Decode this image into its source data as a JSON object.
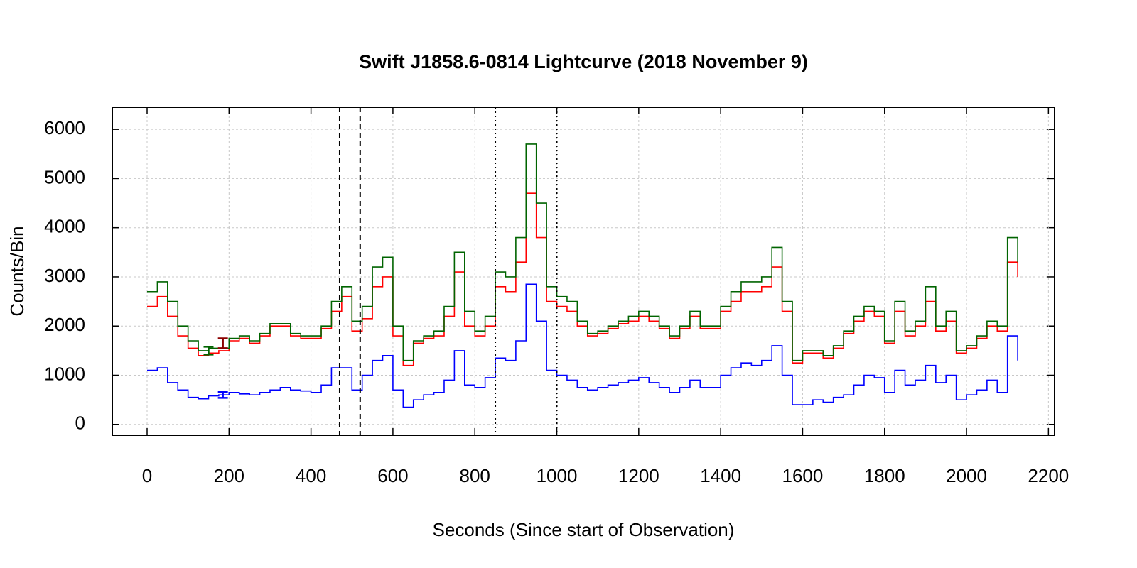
{
  "chart_data": {
    "type": "line",
    "title": "Swift J1858.6-0814 Lightcurve (2018 November 9)",
    "xlabel": "Seconds (Since start of Observation)",
    "ylabel": "Counts/Bin",
    "x": [
      0,
      25,
      50,
      75,
      100,
      125,
      150,
      175,
      200,
      225,
      250,
      275,
      300,
      325,
      350,
      375,
      400,
      425,
      450,
      475,
      500,
      525,
      550,
      575,
      600,
      625,
      650,
      675,
      700,
      725,
      750,
      775,
      800,
      825,
      850,
      875,
      900,
      925,
      950,
      975,
      1000,
      1025,
      1050,
      1075,
      1100,
      1125,
      1150,
      1175,
      1200,
      1225,
      1250,
      1275,
      1300,
      1325,
      1350,
      1375,
      1400,
      1425,
      1450,
      1475,
      1500,
      1525,
      1550,
      1575,
      1600,
      1625,
      1650,
      1675,
      1700,
      1725,
      1750,
      1775,
      1800,
      1825,
      1850,
      1875,
      1900,
      1925,
      1950,
      1975,
      2000,
      2025,
      2050,
      2075,
      2100,
      2125
    ],
    "series": [
      {
        "color": "#0000ff",
        "values": [
          1100,
          1150,
          850,
          700,
          550,
          520,
          580,
          600,
          650,
          620,
          600,
          650,
          700,
          750,
          700,
          680,
          650,
          800,
          1150,
          1150,
          700,
          1000,
          1300,
          1400,
          700,
          350,
          500,
          600,
          650,
          900,
          1500,
          800,
          750,
          950,
          1350,
          1300,
          1700,
          2850,
          2100,
          1100,
          1000,
          900,
          750,
          700,
          750,
          800,
          850,
          900,
          950,
          850,
          750,
          650,
          750,
          900,
          750,
          750,
          1000,
          1150,
          1250,
          1200,
          1300,
          1600,
          1000,
          400,
          400,
          500,
          450,
          550,
          600,
          800,
          1000,
          950,
          650,
          1100,
          800,
          900,
          1200,
          850,
          1000,
          500,
          600,
          700,
          900,
          650,
          1800,
          1300
        ]
      },
      {
        "color": "#ff0000",
        "values": [
          2400,
          2600,
          2200,
          1800,
          1550,
          1400,
          1450,
          1500,
          1700,
          1750,
          1650,
          1800,
          2000,
          2000,
          1800,
          1750,
          1750,
          1950,
          2300,
          2600,
          1900,
          2150,
          2800,
          3000,
          1800,
          1200,
          1650,
          1750,
          1800,
          2200,
          3100,
          2000,
          1800,
          2000,
          2800,
          2700,
          3300,
          4700,
          3800,
          2500,
          2400,
          2300,
          2000,
          1800,
          1850,
          1950,
          2050,
          2100,
          2200,
          2100,
          1950,
          1750,
          1950,
          2200,
          1950,
          1950,
          2300,
          2500,
          2700,
          2700,
          2800,
          3200,
          2300,
          1250,
          1450,
          1450,
          1350,
          1550,
          1850,
          2100,
          2300,
          2200,
          1650,
          2300,
          1800,
          2000,
          2500,
          1900,
          2100,
          1450,
          1550,
          1750,
          2000,
          1900,
          3300,
          3000
        ]
      },
      {
        "color": "#006400",
        "values": [
          2700,
          2900,
          2500,
          2000,
          1700,
          1500,
          1550,
          1550,
          1750,
          1800,
          1700,
          1850,
          2050,
          2050,
          1850,
          1800,
          1800,
          2000,
          2500,
          2800,
          2100,
          2400,
          3200,
          3400,
          2000,
          1300,
          1700,
          1800,
          1900,
          2400,
          3500,
          2300,
          1900,
          2200,
          3100,
          3000,
          3800,
          5700,
          4500,
          2800,
          2600,
          2500,
          2100,
          1850,
          1900,
          2000,
          2100,
          2200,
          2300,
          2200,
          2000,
          1800,
          2000,
          2300,
          2000,
          2000,
          2400,
          2700,
          2900,
          2900,
          3000,
          3600,
          2500,
          1300,
          1500,
          1500,
          1400,
          1600,
          1900,
          2200,
          2400,
          2300,
          1700,
          2500,
          1900,
          2100,
          2800,
          2000,
          2300,
          1500,
          1600,
          1800,
          2100,
          2000,
          3800,
          3300
        ]
      }
    ],
    "error_bars": [
      {
        "x": 150,
        "value": 1500,
        "error": 80,
        "color": "#006400"
      },
      {
        "x": 185,
        "value": 1650,
        "error": 100,
        "color": "#8b0000"
      },
      {
        "x": 185,
        "value": 600,
        "error": 60,
        "color": "#0000ff"
      }
    ],
    "vlines": [
      {
        "value": 470,
        "style": "dashed"
      },
      {
        "value": 520,
        "style": "dashed"
      },
      {
        "value": 850,
        "style": "dotted"
      },
      {
        "value": 1000,
        "style": "dotted"
      }
    ],
    "xlim": [
      -85,
      2215
    ],
    "ylim": [
      -220,
      6450
    ],
    "xticks": [
      0,
      200,
      400,
      600,
      800,
      1000,
      1200,
      1400,
      1600,
      1800,
      2000,
      2200
    ],
    "yticks": [
      0,
      1000,
      2000,
      3000,
      4000,
      5000,
      6000
    ],
    "grid": true
  }
}
